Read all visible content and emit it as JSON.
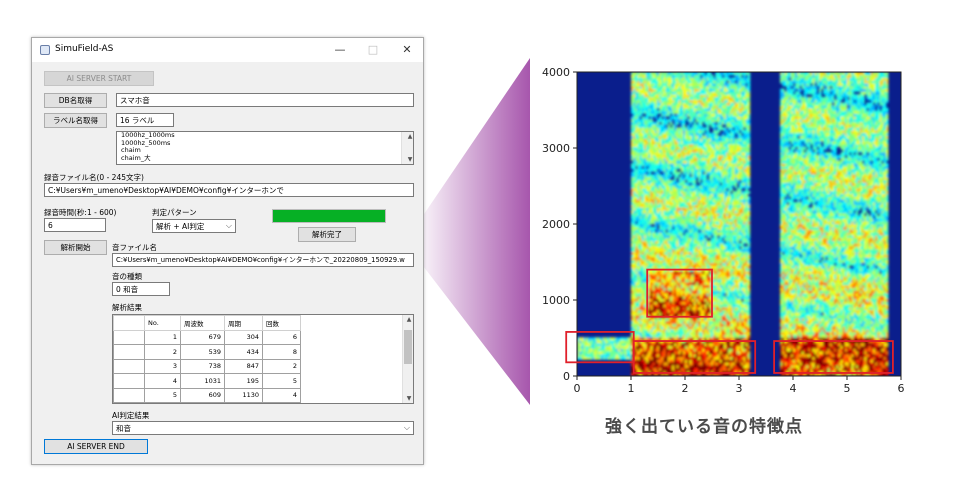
{
  "window": {
    "title": "SimuField-AS",
    "controls": {
      "minimize": "—",
      "maximize": "□",
      "close": "✕"
    }
  },
  "buttons": {
    "ai_server_start": "AI SERVER START",
    "db_name_get": "DB名取得",
    "label_name_get": "ラベル名取得",
    "analysis_start": "解析開始",
    "ai_server_end": "AI SERVER END",
    "analysis_done": "解析完了"
  },
  "fields": {
    "db_name": "スマホ音",
    "label_count": "16 ラベル",
    "recording_file_label": "録音ファイル名(0 - 245文字)",
    "recording_file_path": "C:¥Users¥m_umeno¥Desktop¥AI¥DEMO¥config¥インターホンで",
    "recording_time_label": "録音時間(秒:1 - 600)",
    "recording_time": "6",
    "judge_pattern_label": "判定パターン",
    "judge_pattern": "解析 + AI判定",
    "sound_file_label": "音ファイル名",
    "sound_file_path": "C:¥Users¥m_umeno¥Desktop¥AI¥DEMO¥config¥インターホンで_20220809_150929.w",
    "sound_type_label": "音の種類",
    "sound_type": "0 和音",
    "analysis_result_label": "解析結果",
    "ai_result_label": "AI判定結果",
    "ai_result": "和音"
  },
  "label_list": [
    "1000hz_1000ms",
    "1000hz_500ms",
    "chaim",
    "chaim_大"
  ],
  "result_table": {
    "headers": [
      "No.",
      "周波数",
      "周期",
      "回数"
    ],
    "rows": [
      [
        "1",
        "679",
        "304",
        "6"
      ],
      [
        "2",
        "539",
        "434",
        "8"
      ],
      [
        "3",
        "738",
        "847",
        "2"
      ],
      [
        "4",
        "1031",
        "195",
        "5"
      ],
      [
        "5",
        "609",
        "1130",
        "4"
      ]
    ]
  },
  "chart_data": {
    "type": "heatmap",
    "xlabel": "",
    "ylabel": "",
    "xlim": [
      0,
      6
    ],
    "ylim": [
      0,
      4000
    ],
    "x_ticks": [
      0,
      1,
      2,
      3,
      4,
      5,
      6
    ],
    "y_ticks": [
      0,
      1000,
      2000,
      3000,
      4000
    ],
    "highlight_boxes": [
      {
        "x": [
          -0.2,
          1.05
        ],
        "y": [
          180,
          580
        ]
      },
      {
        "x": [
          1.3,
          2.5
        ],
        "y": [
          780,
          1400
        ]
      },
      {
        "x": [
          1.05,
          3.3
        ],
        "y": [
          40,
          460
        ]
      },
      {
        "x": [
          3.65,
          5.85
        ],
        "y": [
          40,
          460
        ]
      }
    ],
    "box_color": "#e0202a",
    "colormap": "jet"
  },
  "caption": "強く出ている音の特徴点",
  "colors": {
    "accent_green": "#06b025",
    "wedge": "#a24da8"
  }
}
